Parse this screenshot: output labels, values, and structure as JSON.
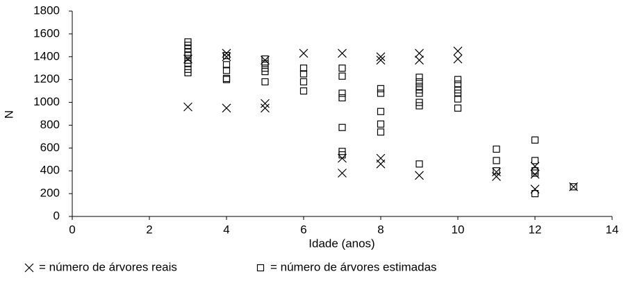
{
  "chart_data": {
    "type": "scatter",
    "xlabel": "Idade (anos)",
    "ylabel": "N",
    "xlim": [
      0,
      14
    ],
    "xticks": [
      0,
      2,
      4,
      6,
      8,
      10,
      12,
      14
    ],
    "ylim": [
      0,
      1800
    ],
    "yticks": [
      0,
      200,
      400,
      600,
      800,
      1000,
      1200,
      1400,
      1600,
      1800
    ],
    "grid": false,
    "legend": "bottom",
    "series": [
      {
        "name": "= número de árvores reais",
        "marker": "x",
        "color": "#000000",
        "x": [
          3,
          3,
          4,
          4,
          4,
          5,
          5,
          5,
          6,
          7,
          7,
          7,
          8,
          8,
          8,
          8,
          9,
          9,
          9,
          10,
          10,
          11,
          11,
          12,
          12,
          12,
          13
        ],
        "values": [
          960,
          1380,
          950,
          1430,
          1400,
          990,
          950,
          1370,
          1430,
          1430,
          510,
          380,
          1400,
          1370,
          510,
          460,
          1430,
          1370,
          360,
          1450,
          1380,
          390,
          350,
          440,
          370,
          240,
          260
        ]
      },
      {
        "name": "= número de árvores estimadas",
        "marker": "square",
        "color": "#000000",
        "x": [
          3,
          3,
          3,
          3,
          3,
          3,
          3,
          3,
          3,
          4,
          4,
          4,
          4,
          4,
          5,
          5,
          5,
          5,
          5,
          6,
          6,
          6,
          6,
          7,
          7,
          7,
          7,
          7,
          7,
          7,
          8,
          8,
          8,
          8,
          8,
          9,
          9,
          9,
          9,
          9,
          9,
          9,
          9,
          10,
          10,
          10,
          10,
          10,
          10,
          11,
          11,
          11,
          12,
          12,
          12,
          12,
          12,
          13
        ],
        "values": [
          1530,
          1500,
          1470,
          1440,
          1410,
          1370,
          1340,
          1290,
          1260,
          1410,
          1330,
          1280,
          1210,
          1200,
          1380,
          1340,
          1300,
          1270,
          1180,
          1300,
          1250,
          1180,
          1100,
          1300,
          1230,
          1080,
          1040,
          780,
          570,
          540,
          1120,
          1080,
          920,
          810,
          740,
          1220,
          1180,
          1140,
          1110,
          1080,
          1000,
          970,
          460,
          1200,
          1160,
          1110,
          1080,
          1030,
          950,
          590,
          490,
          400,
          670,
          490,
          400,
          380,
          200,
          260
        ]
      }
    ]
  }
}
